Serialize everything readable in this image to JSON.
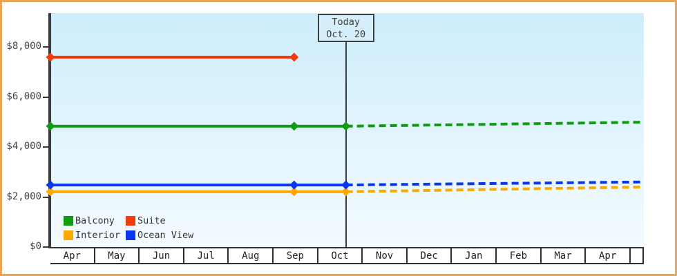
{
  "window": {
    "border_color": "#e9a65a",
    "plot_background_top": "#cdeefb",
    "plot_background_bottom": "#f2fbff",
    "axis_color": "#3a3a3a"
  },
  "chart_data": {
    "type": "line",
    "title": "",
    "xlabel": "",
    "ylabel": "",
    "x_axis": {
      "categories": [
        "Apr",
        "May",
        "Jun",
        "Jul",
        "Aug",
        "Sep",
        "Oct",
        "Nov",
        "Dec",
        "Jan",
        "Feb",
        "Mar",
        "Apr"
      ]
    },
    "y_axis": {
      "min": 0,
      "max": 9350,
      "ticks": [
        {
          "label": "$0",
          "value": 0
        },
        {
          "label": "$2,000",
          "value": 2000
        },
        {
          "label": "$4,000",
          "value": 4000
        },
        {
          "label": "$6,000",
          "value": 6000
        },
        {
          "label": "$8,000",
          "value": 8000
        }
      ]
    },
    "grid": false,
    "series": [
      {
        "name": "Balcony",
        "color": "#109c10",
        "style": "solid",
        "points": [
          [
            0,
            4830
          ],
          [
            5.46,
            4830
          ],
          [
            6.62,
            4830
          ]
        ]
      },
      {
        "name": "Suite",
        "color": "#f43b0c",
        "style": "solid",
        "points": [
          [
            0,
            7590
          ],
          [
            5.46,
            7590
          ]
        ]
      },
      {
        "name": "Interior",
        "color": "#ffa800",
        "style": "solid",
        "points": [
          [
            0,
            2210
          ],
          [
            5.46,
            2210
          ],
          [
            6.62,
            2210
          ]
        ]
      },
      {
        "name": "Ocean View",
        "color": "#0a36f0",
        "style": "solid",
        "points": [
          [
            0,
            2480
          ],
          [
            5.46,
            2480
          ],
          [
            6.62,
            2480
          ]
        ]
      }
    ],
    "projections": [
      {
        "name": "Balcony",
        "color": "#109c10",
        "style": "dashed",
        "points": [
          [
            6.62,
            4830
          ],
          [
            13.28,
            4990
          ]
        ]
      },
      {
        "name": "Interior",
        "color": "#ffa800",
        "style": "dashed",
        "points": [
          [
            6.62,
            2210
          ],
          [
            13.28,
            2400
          ]
        ]
      },
      {
        "name": "Ocean View",
        "color": "#0a36f0",
        "style": "dashed",
        "points": [
          [
            6.62,
            2480
          ],
          [
            13.28,
            2600
          ]
        ]
      }
    ],
    "annotations": {
      "today": {
        "label": "Today",
        "date": "Oct. 20",
        "t_months_from_apr": 6.62
      }
    },
    "legend_position": "bottom-left",
    "legend": [
      {
        "label": "Balcony",
        "color": "#109c10"
      },
      {
        "label": "Suite",
        "color": "#f43b0c"
      },
      {
        "label": "Interior",
        "color": "#ffa800"
      },
      {
        "label": "Ocean View",
        "color": "#0a36f0"
      }
    ]
  }
}
